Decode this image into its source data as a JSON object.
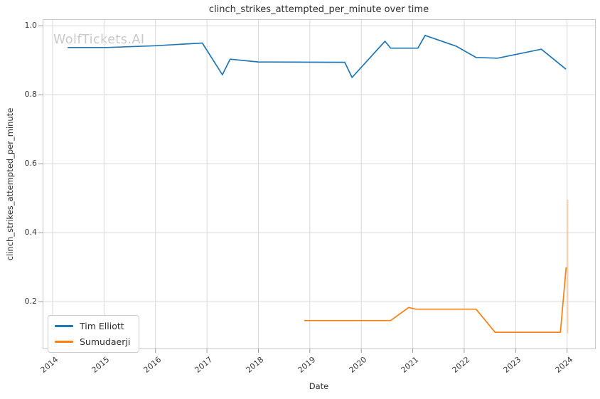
{
  "watermark": "WolfTickets.AI",
  "chart_data": {
    "type": "line",
    "title": "clinch_strikes_attempted_per_minute over time",
    "xlabel": "Date",
    "ylabel": "clinch_strikes_attempted_per_minute",
    "x_ticks": [
      2014,
      2015,
      2016,
      2017,
      2018,
      2019,
      2020,
      2021,
      2022,
      2023,
      2024
    ],
    "y_ticks": [
      0.2,
      0.4,
      0.6,
      0.8,
      1.0
    ],
    "y_tick_labels": [
      "0.2",
      "0.4",
      "0.6",
      "0.8",
      "1.0"
    ],
    "x_range": [
      2013.807,
      2024.543
    ],
    "y_range": [
      0.064,
      1.019
    ],
    "grid": true,
    "legend_position": "lower left",
    "colors": {
      "grid": "#d9d9d9",
      "frame": "#c6c6c6",
      "tick": "#9a9a9a"
    },
    "series": [
      {
        "name": "Tim Elliott",
        "color": "#1f77b4",
        "points": [
          [
            2014.3,
            0.937
          ],
          [
            2015.05,
            0.937
          ],
          [
            2016.0,
            0.942
          ],
          [
            2016.91,
            0.95
          ],
          [
            2017.3,
            0.858
          ],
          [
            2017.45,
            0.903
          ],
          [
            2018.0,
            0.895
          ],
          [
            2019.68,
            0.894
          ],
          [
            2019.82,
            0.85
          ],
          [
            2020.46,
            0.955
          ],
          [
            2020.57,
            0.935
          ],
          [
            2021.1,
            0.935
          ],
          [
            2021.24,
            0.972
          ],
          [
            2021.84,
            0.941
          ],
          [
            2022.23,
            0.908
          ],
          [
            2022.65,
            0.906
          ],
          [
            2023.5,
            0.932
          ],
          [
            2023.97,
            0.875
          ]
        ]
      },
      {
        "name": "Sumudaerji",
        "color": "#ff7f0e",
        "points": [
          [
            2018.9,
            0.145
          ],
          [
            2020.57,
            0.145
          ],
          [
            2020.92,
            0.183
          ],
          [
            2021.06,
            0.178
          ],
          [
            2022.23,
            0.178
          ],
          [
            2022.6,
            0.111
          ],
          [
            2023.87,
            0.111
          ],
          [
            2023.98,
            0.298
          ]
        ]
      }
    ],
    "annotations": [
      {
        "type": "vertical-error-bar",
        "x": 2024.01,
        "y_from": 0.108,
        "y_to": 0.495,
        "color": "#ff7f0e",
        "opacity": 0.3
      }
    ]
  }
}
